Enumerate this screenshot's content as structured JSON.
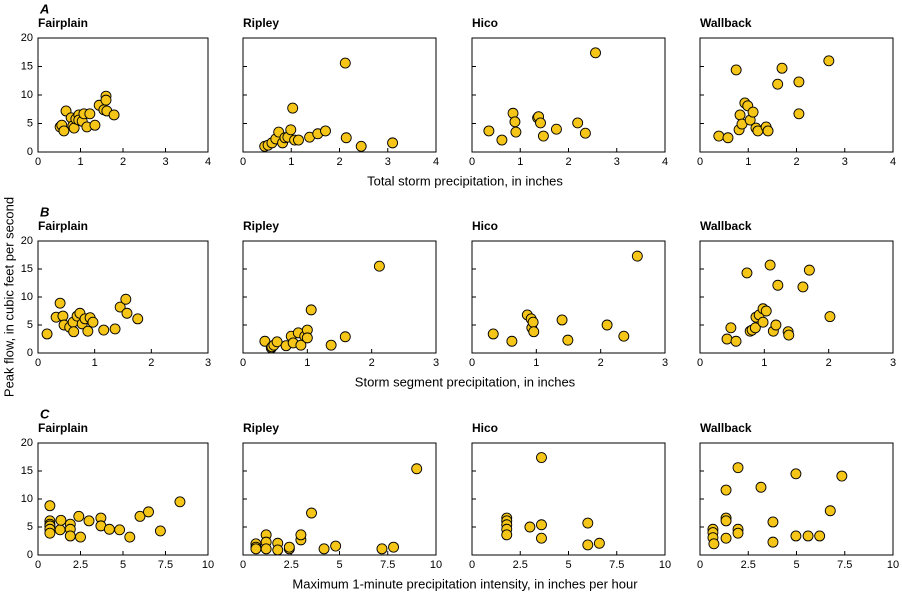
{
  "y_label": "Peak flow, in cubic feet per second",
  "rows": [
    {
      "label": "A",
      "x_label": "Total storm precipitation, in inches"
    },
    {
      "label": "B",
      "x_label": "Storm segment precipitation, in inches"
    },
    {
      "label": "C",
      "x_label": "Maximum 1-minute precipitation intensity, in inches per hour"
    }
  ],
  "chart_data": [
    {
      "type": "scatter",
      "title": "Fairplain",
      "color": "#f5c518",
      "x": [
        0.52,
        0.56,
        0.61,
        0.66,
        0.78,
        0.82,
        0.85,
        0.89,
        0.96,
        0.96,
        1.04,
        1.08,
        1.15,
        1.22,
        1.34,
        1.44,
        1.55,
        1.6,
        1.6,
        1.62,
        1.79
      ],
      "y": [
        4.4,
        4.7,
        3.7,
        7.2,
        6.0,
        4.6,
        4.2,
        5.8,
        6.5,
        5.6,
        5.4,
        6.7,
        4.4,
        6.7,
        4.7,
        8.2,
        7.4,
        9.8,
        9.1,
        7.2,
        6.5
      ],
      "xlim": [
        0,
        4
      ],
      "ylim": [
        0,
        20
      ],
      "xticks": [
        0,
        1,
        2,
        3,
        4
      ],
      "yticks": [
        0,
        5,
        10,
        15,
        20
      ]
    },
    {
      "type": "scatter",
      "title": "Ripley",
      "color": "#f5c518",
      "x": [
        0.45,
        0.52,
        0.6,
        0.68,
        0.74,
        0.82,
        0.87,
        0.93,
        0.99,
        1.03,
        1.07,
        1.15,
        1.38,
        1.55,
        1.71,
        2.12,
        2.14,
        2.45,
        3.1
      ],
      "y": [
        1.0,
        1.2,
        1.6,
        2.3,
        3.5,
        1.6,
        2.5,
        2.6,
        3.9,
        7.7,
        2.1,
        2.1,
        2.6,
        3.2,
        3.7,
        15.6,
        2.5,
        1.0,
        1.6
      ],
      "xlim": [
        0,
        4
      ],
      "ylim": [
        0,
        20
      ],
      "xticks": [
        0,
        1,
        2,
        3,
        4
      ],
      "yticks": [
        0,
        5,
        10,
        15,
        20
      ]
    },
    {
      "type": "scatter",
      "title": "Hico",
      "color": "#f5c518",
      "x": [
        0.35,
        0.62,
        0.85,
        0.89,
        0.91,
        1.36,
        1.38,
        1.42,
        1.48,
        1.75,
        2.19,
        2.35,
        2.56
      ],
      "y": [
        3.7,
        2.1,
        6.8,
        5.3,
        3.5,
        6.0,
        6.2,
        5.1,
        2.8,
        4.0,
        5.1,
        3.3,
        17.4
      ],
      "xlim": [
        0,
        4
      ],
      "ylim": [
        0,
        20
      ],
      "xticks": [
        0,
        1,
        2,
        3,
        4
      ],
      "yticks": [
        0,
        5,
        10,
        15,
        20
      ]
    },
    {
      "type": "scatter",
      "title": "Wallback",
      "color": "#f5c518",
      "x": [
        0.39,
        0.58,
        0.75,
        0.81,
        0.83,
        0.87,
        0.93,
        0.99,
        1.04,
        1.1,
        1.16,
        1.2,
        1.37,
        1.41,
        1.61,
        1.7,
        2.05,
        2.05,
        2.67
      ],
      "y": [
        2.8,
        2.5,
        14.4,
        3.9,
        6.5,
        4.9,
        8.6,
        8.1,
        5.6,
        7.0,
        4.2,
        3.7,
        4.4,
        3.7,
        11.9,
        14.7,
        12.3,
        6.7,
        16.0
      ],
      "xlim": [
        0,
        4
      ],
      "ylim": [
        0,
        20
      ],
      "xticks": [
        0,
        1,
        2,
        3,
        4
      ],
      "yticks": [
        0,
        5,
        10,
        15,
        20
      ]
    },
    {
      "type": "scatter",
      "title": "Fairplain",
      "color": "#f5c518",
      "x": [
        0.16,
        0.32,
        0.39,
        0.44,
        0.46,
        0.56,
        0.62,
        0.63,
        0.69,
        0.74,
        0.78,
        0.83,
        0.88,
        0.92,
        0.97,
        1.16,
        1.36,
        1.45,
        1.55,
        1.57,
        1.76
      ],
      "y": [
        3.4,
        6.4,
        8.9,
        6.6,
        5.0,
        4.6,
        5.5,
        3.8,
        6.6,
        7.1,
        5.2,
        6.1,
        3.9,
        6.3,
        5.5,
        4.1,
        4.3,
        8.2,
        9.6,
        7.1,
        6.1
      ],
      "xlim": [
        0,
        3
      ],
      "ylim": [
        0,
        20
      ],
      "xticks": [
        0,
        1,
        2,
        3
      ],
      "yticks": [
        0,
        5,
        10,
        15,
        20
      ]
    },
    {
      "type": "scatter",
      "title": "Ripley",
      "color": "#f5c518",
      "x": [
        0.34,
        0.44,
        0.45,
        0.48,
        0.53,
        0.67,
        0.75,
        0.78,
        0.86,
        0.9,
        0.96,
        1.0,
        1.0,
        1.06,
        1.37,
        1.59,
        2.12
      ],
      "y": [
        2.1,
        0.9,
        1.1,
        1.4,
        2.0,
        1.3,
        3.0,
        1.8,
        3.6,
        1.4,
        3.0,
        4.1,
        2.7,
        7.7,
        1.4,
        2.9,
        15.5
      ],
      "xlim": [
        0,
        3
      ],
      "ylim": [
        0,
        20
      ],
      "xticks": [
        0,
        1,
        2,
        3
      ],
      "yticks": [
        0,
        5,
        10,
        15,
        20
      ]
    },
    {
      "type": "scatter",
      "title": "Hico",
      "color": "#f5c518",
      "x": [
        0.33,
        0.62,
        0.86,
        0.92,
        0.93,
        0.95,
        0.96,
        1.4,
        1.49,
        2.1,
        2.36,
        2.57
      ],
      "y": [
        3.4,
        2.1,
        6.8,
        6.1,
        4.5,
        5.5,
        3.8,
        5.9,
        2.3,
        5.0,
        3.0,
        17.3
      ],
      "xlim": [
        0,
        3
      ],
      "ylim": [
        0,
        20
      ],
      "xticks": [
        0,
        1,
        2,
        3
      ],
      "yticks": [
        0,
        5,
        10,
        15,
        20
      ]
    },
    {
      "type": "scatter",
      "title": "Wallback",
      "color": "#f5c518",
      "x": [
        0.42,
        0.48,
        0.56,
        0.73,
        0.78,
        0.81,
        0.86,
        0.87,
        0.92,
        0.98,
        0.98,
        1.03,
        1.09,
        1.14,
        1.18,
        1.21,
        1.37,
        1.38,
        1.6,
        1.7,
        2.02
      ],
      "y": [
        2.5,
        4.5,
        2.1,
        14.3,
        3.9,
        4.1,
        4.5,
        6.4,
        6.8,
        7.9,
        5.5,
        7.5,
        15.7,
        3.9,
        5.0,
        12.1,
        3.8,
        3.2,
        11.8,
        14.8,
        6.5
      ],
      "xlim": [
        0,
        3
      ],
      "ylim": [
        0,
        20
      ],
      "xticks": [
        0,
        1,
        2,
        3
      ],
      "yticks": [
        0,
        5,
        10,
        15,
        20
      ]
    },
    {
      "type": "scatter",
      "title": "Fairplain",
      "color": "#f5c518",
      "x": [
        0.7,
        0.7,
        0.7,
        0.7,
        0.7,
        0.7,
        1.3,
        1.35,
        1.9,
        1.9,
        1.9,
        2.4,
        2.5,
        3.0,
        3.7,
        3.7,
        4.2,
        4.8,
        5.4,
        6.0,
        6.5,
        7.2,
        8.35
      ],
      "y": [
        8.8,
        6.1,
        5.5,
        5.2,
        4.6,
        3.9,
        4.5,
        6.2,
        5.5,
        4.6,
        3.4,
        6.9,
        3.2,
        6.1,
        6.6,
        5.2,
        4.6,
        4.5,
        3.2,
        6.9,
        7.7,
        4.3,
        9.5
      ],
      "xlim": [
        0,
        10
      ],
      "ylim": [
        0,
        20
      ],
      "xticks": [
        0,
        2.5,
        5,
        7.5,
        10
      ],
      "yticks": [
        0,
        5,
        10,
        15,
        20
      ]
    },
    {
      "type": "scatter",
      "title": "Ripley",
      "color": "#f5c518",
      "x": [
        0.67,
        0.67,
        0.67,
        1.2,
        1.2,
        1.2,
        1.8,
        1.8,
        2.4,
        2.4,
        3.0,
        3.0,
        3.55,
        4.2,
        4.8,
        7.2,
        7.8,
        9.0
      ],
      "y": [
        2.0,
        1.4,
        1.1,
        3.6,
        2.3,
        1.1,
        2.1,
        0.9,
        1.1,
        1.4,
        2.7,
        3.6,
        7.5,
        1.1,
        1.6,
        1.1,
        1.4,
        15.4
      ],
      "xlim": [
        0,
        10
      ],
      "ylim": [
        0,
        20
      ],
      "xticks": [
        0,
        2.5,
        5,
        7.5,
        10
      ],
      "yticks": [
        0,
        5,
        10,
        15,
        20
      ]
    },
    {
      "type": "scatter",
      "title": "Hico",
      "color": "#f5c518",
      "x": [
        1.8,
        1.8,
        1.8,
        1.8,
        1.8,
        3.0,
        3.6,
        3.6,
        3.6,
        6.0,
        6.0,
        6.6
      ],
      "y": [
        6.6,
        6.1,
        5.4,
        4.6,
        3.6,
        5.0,
        17.4,
        5.4,
        3.0,
        5.7,
        1.8,
        2.1
      ],
      "xlim": [
        0,
        10
      ],
      "ylim": [
        0,
        20
      ],
      "xticks": [
        0,
        2.5,
        5,
        7.5,
        10
      ],
      "yticks": [
        0,
        5,
        10,
        15,
        20
      ]
    },
    {
      "type": "scatter",
      "title": "Wallback",
      "color": "#f5c518",
      "x": [
        0.67,
        0.67,
        0.67,
        0.72,
        1.35,
        1.35,
        1.35,
        1.35,
        1.97,
        1.97,
        1.97,
        3.16,
        3.78,
        3.78,
        4.97,
        4.97,
        5.6,
        6.2,
        6.75,
        7.35
      ],
      "y": [
        4.6,
        4.0,
        3.1,
        2.0,
        11.6,
        6.6,
        6.1,
        3.0,
        15.6,
        4.6,
        3.9,
        12.1,
        5.9,
        2.3,
        14.5,
        3.4,
        3.4,
        3.4,
        7.9,
        14.1
      ],
      "xlim": [
        0,
        10
      ],
      "ylim": [
        0,
        20
      ],
      "xticks": [
        0,
        2.5,
        5,
        7.5,
        10
      ],
      "yticks": [
        0,
        5,
        10,
        15,
        20
      ]
    }
  ]
}
